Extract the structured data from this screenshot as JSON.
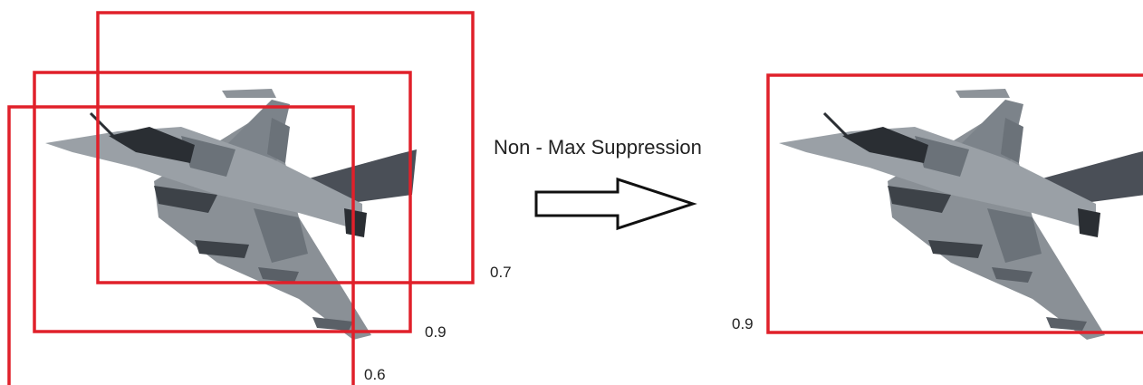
{
  "left_boxes": [
    {
      "score": "0.7"
    },
    {
      "score": "0.9"
    },
    {
      "score": "0.6"
    }
  ],
  "operation": "Non - Max Suppression",
  "right_boxes": [
    {
      "score": "0.9"
    }
  ]
}
